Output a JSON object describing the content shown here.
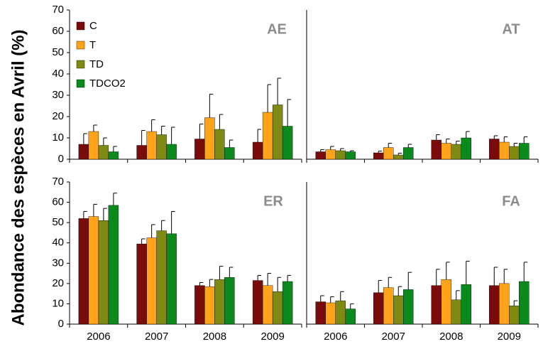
{
  "chart_data": {
    "type": "bar",
    "ylabel": "Abondance des espèces en Avril (%)",
    "categories": [
      "2006",
      "2007",
      "2008",
      "2009"
    ],
    "yticks": [
      "0",
      "10",
      "20",
      "30",
      "40",
      "50",
      "60",
      "70"
    ],
    "ylim": [
      0,
      70
    ],
    "legend": {
      "placement": "top-left",
      "entries": [
        "C",
        "T",
        "TD",
        "TDCO2"
      ]
    },
    "colors": {
      "C": "#7a0b0b",
      "T": "#ffa31a",
      "TD": "#7f8a14",
      "TDCO2": "#0a8a1c"
    },
    "panels": [
      {
        "label": "AE",
        "series": [
          {
            "name": "C",
            "values": [
              7,
              6.5,
              9.5,
              8
            ],
            "errors": [
              5,
              7,
              7,
              6
            ]
          },
          {
            "name": "T",
            "values": [
              13,
              13,
              19.5,
              22
            ],
            "errors": [
              3,
              5.5,
              11,
              13
            ]
          },
          {
            "name": "TD",
            "values": [
              6.5,
              11.5,
              14,
              25.5
            ],
            "errors": [
              3.5,
              4,
              7,
              12.5
            ]
          },
          {
            "name": "TDCO2",
            "values": [
              3.5,
              7,
              5.5,
              15.5
            ],
            "errors": [
              2.5,
              8,
              3.5,
              12.5
            ]
          }
        ]
      },
      {
        "label": "AT",
        "series": [
          {
            "name": "C",
            "values": [
              3.5,
              3,
              9,
              9.5
            ],
            "errors": [
              1,
              0.8,
              2.5,
              1.5
            ]
          },
          {
            "name": "T",
            "values": [
              4.5,
              5.5,
              7.5,
              8
            ],
            "errors": [
              1.5,
              2,
              2,
              2.5
            ]
          },
          {
            "name": "TD",
            "values": [
              4,
              2,
              7,
              6
            ],
            "errors": [
              1,
              0.8,
              1.5,
              1.5
            ]
          },
          {
            "name": "TDCO2",
            "values": [
              3.5,
              5.5,
              10,
              7.5
            ],
            "errors": [
              0.5,
              1.5,
              3,
              3
            ]
          }
        ]
      },
      {
        "label": "ER",
        "series": [
          {
            "name": "C",
            "values": [
              52,
              39.5,
              19,
              21.5
            ],
            "errors": [
              3.5,
              2.5,
              1.5,
              2.5
            ]
          },
          {
            "name": "T",
            "values": [
              53,
              42.5,
              18.5,
              19
            ],
            "errors": [
              6,
              6.5,
              3.5,
              6
            ]
          },
          {
            "name": "TD",
            "values": [
              51,
              46,
              22,
              16
            ],
            "errors": [
              6,
              5,
              6.5,
              7
            ]
          },
          {
            "name": "TDCO2",
            "values": [
              58.5,
              44.5,
              23,
              21
            ],
            "errors": [
              6,
              11,
              5,
              3
            ]
          }
        ]
      },
      {
        "label": "FA",
        "series": [
          {
            "name": "C",
            "values": [
              11,
              15.5,
              19,
              19
            ],
            "errors": [
              3,
              6,
              8,
              9
            ]
          },
          {
            "name": "T",
            "values": [
              10.5,
              18,
              22,
              20
            ],
            "errors": [
              3,
              5,
              8.5,
              7
            ]
          },
          {
            "name": "TD",
            "values": [
              11.5,
              14,
              12,
              9
            ],
            "errors": [
              4.5,
              4.5,
              4.5,
              2.5
            ]
          },
          {
            "name": "TDCO2",
            "values": [
              7.5,
              17,
              19.5,
              21
            ],
            "errors": [
              2.5,
              8.5,
              11.5,
              9.5
            ]
          }
        ]
      }
    ]
  }
}
